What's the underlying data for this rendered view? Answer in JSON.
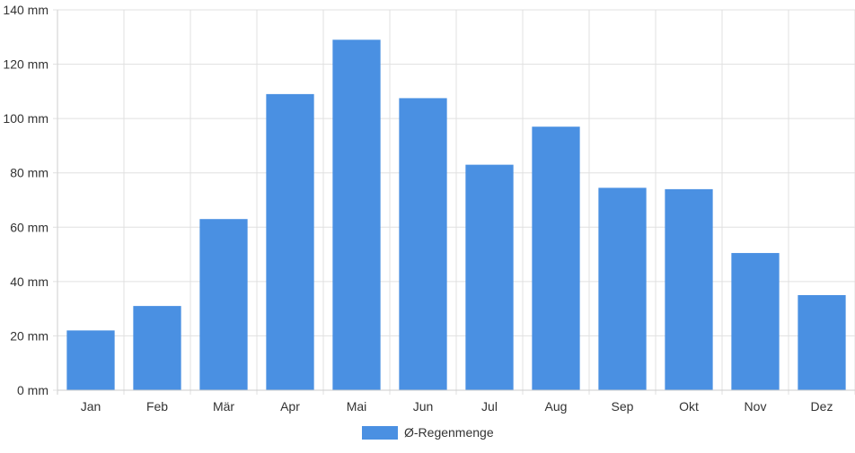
{
  "chart_data": {
    "type": "bar",
    "categories": [
      "Jan",
      "Feb",
      "Mär",
      "Apr",
      "Mai",
      "Jun",
      "Jul",
      "Aug",
      "Sep",
      "Okt",
      "Nov",
      "Dez"
    ],
    "series": [
      {
        "name": "Ø-Regenmenge",
        "values": [
          22,
          31,
          63,
          109,
          129,
          107.5,
          83,
          97,
          74.5,
          74,
          50.5,
          35
        ]
      }
    ],
    "ylim": [
      0,
      140
    ],
    "y_ticks": [
      0,
      20,
      40,
      60,
      80,
      100,
      120,
      140
    ],
    "y_unit": "mm",
    "grid": true,
    "legend_position": "bottom",
    "colors": {
      "bar": "#4a90e2",
      "grid": "#e0e0e0",
      "axis": "#cccccc",
      "text": "#333333"
    }
  }
}
